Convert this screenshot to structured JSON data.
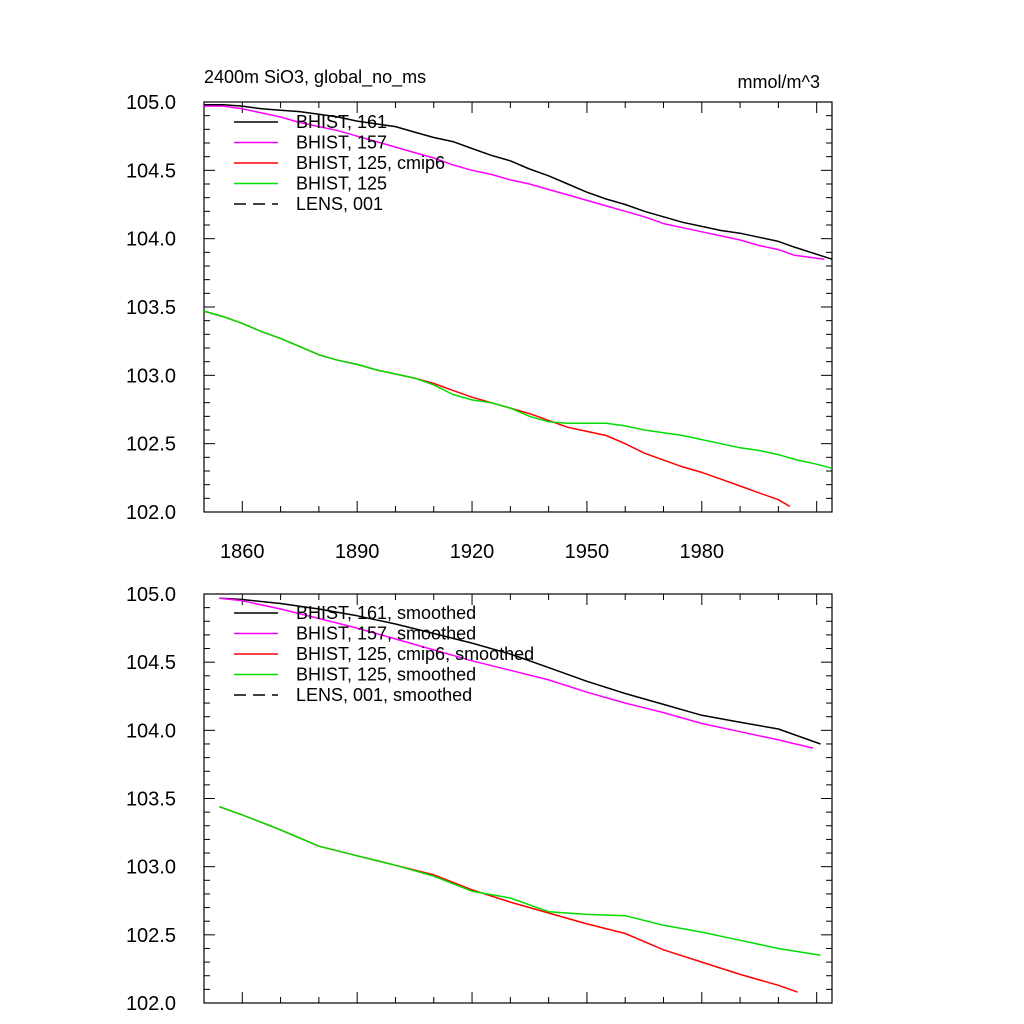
{
  "header": {
    "title": "2400m SiO3, global_no_ms",
    "units": "mmol/m^3"
  },
  "chart_data": [
    {
      "type": "line",
      "title": "2400m SiO3, global_no_ms",
      "units_label": "mmol/m^3",
      "xlim": [
        1850,
        2014
      ],
      "ylim": [
        102.0,
        105.0
      ],
      "x_ticks": [
        1860,
        1890,
        1920,
        1950,
        1980
      ],
      "x_tick_labels": [
        "1860",
        "1890",
        "1920",
        "1950",
        "1980"
      ],
      "y_ticks": [
        102.0,
        102.5,
        103.0,
        103.5,
        104.0,
        104.5,
        105.0
      ],
      "y_tick_labels": [
        "102.0",
        "102.5",
        "103.0",
        "103.5",
        "104.0",
        "104.5",
        "105.0"
      ],
      "grid": false,
      "legend_position": "top-left",
      "legend": [
        {
          "label": "BHIST, 161",
          "color": "#000000",
          "dash": "solid"
        },
        {
          "label": "BHIST, 157",
          "color": "#ff00ff",
          "dash": "solid"
        },
        {
          "label": "BHIST, 125, cmip6",
          "color": "#ff0000",
          "dash": "solid"
        },
        {
          "label": "BHIST, 125",
          "color": "#00dd00",
          "dash": "solid"
        },
        {
          "label": "LENS, 001",
          "color": "#000000",
          "dash": "dashed"
        }
      ],
      "series": [
        {
          "name": "BHIST, 161",
          "color": "#000000",
          "x": [
            1850,
            1855,
            1860,
            1865,
            1870,
            1875,
            1880,
            1885,
            1890,
            1895,
            1900,
            1905,
            1910,
            1915,
            1920,
            1925,
            1930,
            1935,
            1940,
            1945,
            1950,
            1955,
            1960,
            1965,
            1970,
            1975,
            1980,
            1985,
            1990,
            1995,
            2000,
            2004,
            2014
          ],
          "y": [
            104.98,
            104.98,
            104.97,
            104.95,
            104.94,
            104.93,
            104.91,
            104.89,
            104.86,
            104.84,
            104.82,
            104.78,
            104.74,
            104.71,
            104.66,
            104.61,
            104.57,
            104.51,
            104.46,
            104.4,
            104.34,
            104.29,
            104.25,
            104.2,
            104.16,
            104.12,
            104.09,
            104.06,
            104.04,
            104.01,
            103.98,
            103.94,
            103.85
          ]
        },
        {
          "name": "BHIST, 157",
          "color": "#ff00ff",
          "x": [
            1850,
            1855,
            1860,
            1865,
            1870,
            1875,
            1880,
            1885,
            1890,
            1895,
            1900,
            1905,
            1910,
            1915,
            1920,
            1925,
            1930,
            1935,
            1940,
            1945,
            1950,
            1955,
            1960,
            1965,
            1970,
            1975,
            1980,
            1985,
            1990,
            1995,
            2000,
            2004,
            2012
          ],
          "y": [
            104.97,
            104.97,
            104.95,
            104.92,
            104.89,
            104.85,
            104.82,
            104.79,
            104.75,
            104.71,
            104.67,
            104.63,
            104.59,
            104.54,
            104.5,
            104.47,
            104.43,
            104.4,
            104.36,
            104.32,
            104.28,
            104.24,
            104.2,
            104.16,
            104.11,
            104.08,
            104.05,
            104.02,
            103.99,
            103.95,
            103.92,
            103.88,
            103.85
          ]
        },
        {
          "name": "BHIST, 125, cmip6",
          "color": "#ff0000",
          "x": [
            1850,
            1855,
            1860,
            1865,
            1870,
            1875,
            1880,
            1885,
            1890,
            1895,
            1900,
            1905,
            1910,
            1915,
            1920,
            1925,
            1930,
            1935,
            1940,
            1945,
            1950,
            1955,
            1960,
            1965,
            1970,
            1975,
            1980,
            1985,
            1990,
            1995,
            2000,
            2003
          ],
          "y": [
            103.47,
            103.43,
            103.38,
            103.32,
            103.27,
            103.21,
            103.15,
            103.11,
            103.08,
            103.04,
            103.01,
            102.98,
            102.94,
            102.89,
            102.84,
            102.8,
            102.76,
            102.72,
            102.67,
            102.62,
            102.59,
            102.56,
            102.5,
            102.43,
            102.38,
            102.33,
            102.29,
            102.24,
            102.19,
            102.14,
            102.09,
            102.04
          ]
        },
        {
          "name": "BHIST, 125",
          "color": "#00dd00",
          "x": [
            1850,
            1855,
            1860,
            1865,
            1870,
            1875,
            1880,
            1885,
            1890,
            1895,
            1900,
            1905,
            1910,
            1915,
            1920,
            1925,
            1930,
            1935,
            1940,
            1945,
            1950,
            1955,
            1960,
            1965,
            1970,
            1975,
            1980,
            1985,
            1990,
            1995,
            2000,
            2005,
            2010,
            2014
          ],
          "y": [
            103.47,
            103.43,
            103.38,
            103.32,
            103.27,
            103.21,
            103.15,
            103.11,
            103.08,
            103.04,
            103.01,
            102.98,
            102.93,
            102.86,
            102.82,
            102.8,
            102.76,
            102.7,
            102.66,
            102.65,
            102.65,
            102.65,
            102.63,
            102.6,
            102.58,
            102.56,
            102.53,
            102.5,
            102.47,
            102.45,
            102.42,
            102.38,
            102.35,
            102.32
          ]
        }
      ]
    },
    {
      "type": "line",
      "xlim": [
        1850,
        2014
      ],
      "ylim": [
        102.0,
        105.0
      ],
      "x_ticks": [
        1860,
        1890,
        1920,
        1950,
        1980
      ],
      "y_ticks": [
        102.0,
        102.5,
        103.0,
        103.5,
        104.0,
        104.5,
        105.0
      ],
      "y_tick_labels": [
        "102.0",
        "102.5",
        "103.0",
        "103.5",
        "104.0",
        "104.5",
        "105.0"
      ],
      "grid": false,
      "legend_position": "top-left",
      "legend": [
        {
          "label": "BHIST, 161, smoothed",
          "color": "#000000",
          "dash": "solid"
        },
        {
          "label": "BHIST, 157, smoothed",
          "color": "#ff00ff",
          "dash": "solid"
        },
        {
          "label": "BHIST, 125, cmip6, smoothed",
          "color": "#ff0000",
          "dash": "solid"
        },
        {
          "label": "BHIST, 125, smoothed",
          "color": "#00dd00",
          "dash": "solid"
        },
        {
          "label": "LENS, 001, smoothed",
          "color": "#000000",
          "dash": "dashed"
        }
      ],
      "series": [
        {
          "name": "BHIST, 161, smoothed",
          "color": "#000000",
          "x": [
            1854,
            1860,
            1870,
            1880,
            1890,
            1900,
            1910,
            1920,
            1930,
            1940,
            1950,
            1960,
            1970,
            1980,
            1990,
            2000,
            2011
          ],
          "y": [
            104.97,
            104.96,
            104.93,
            104.89,
            104.84,
            104.78,
            104.71,
            104.64,
            104.56,
            104.46,
            104.36,
            104.27,
            104.19,
            104.11,
            104.06,
            104.01,
            103.9
          ]
        },
        {
          "name": "BHIST, 157, smoothed",
          "color": "#ff00ff",
          "x": [
            1854,
            1860,
            1870,
            1880,
            1890,
            1900,
            1910,
            1920,
            1930,
            1940,
            1950,
            1960,
            1970,
            1980,
            1990,
            2000,
            2009
          ],
          "y": [
            104.97,
            104.95,
            104.89,
            104.82,
            104.75,
            104.67,
            104.59,
            104.51,
            104.44,
            104.37,
            104.28,
            104.2,
            104.13,
            104.05,
            103.99,
            103.93,
            103.87
          ]
        },
        {
          "name": "BHIST, 125, cmip6, smoothed",
          "color": "#ff0000",
          "x": [
            1854,
            1860,
            1870,
            1880,
            1890,
            1900,
            1910,
            1920,
            1930,
            1940,
            1950,
            1960,
            1970,
            1980,
            1990,
            2000,
            2005
          ],
          "y": [
            103.44,
            103.38,
            103.27,
            103.15,
            103.08,
            103.01,
            102.94,
            102.83,
            102.74,
            102.66,
            102.58,
            102.51,
            102.39,
            102.3,
            102.21,
            102.13,
            102.08
          ]
        },
        {
          "name": "BHIST, 125, smoothed",
          "color": "#00dd00",
          "x": [
            1854,
            1860,
            1870,
            1880,
            1890,
            1900,
            1910,
            1920,
            1930,
            1940,
            1950,
            1960,
            1970,
            1980,
            1990,
            2000,
            2011
          ],
          "y": [
            103.44,
            103.38,
            103.27,
            103.15,
            103.08,
            103.01,
            102.93,
            102.82,
            102.77,
            102.67,
            102.65,
            102.64,
            102.57,
            102.52,
            102.46,
            102.4,
            102.35
          ]
        }
      ]
    }
  ]
}
